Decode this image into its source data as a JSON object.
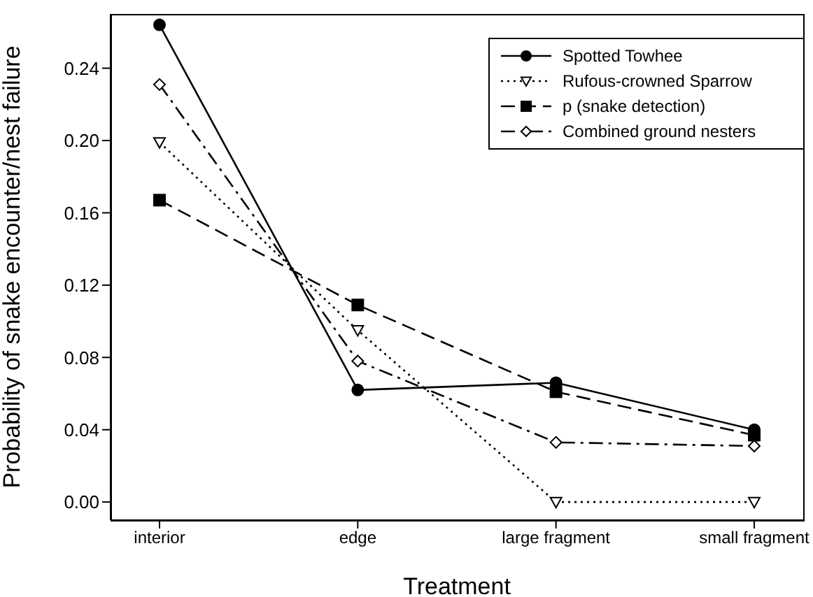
{
  "chart_data": {
    "type": "line",
    "xlabel": "Treatment",
    "ylabel": "Probability of snake encounter/nest failure",
    "categories": [
      "interior",
      "edge",
      "large fragment",
      "small fragment"
    ],
    "series": [
      {
        "name": "Spotted Towhee",
        "color": "#000000",
        "values": [
          0.264,
          0.062,
          0.066,
          0.04
        ],
        "marker": "circle",
        "line_style": "solid"
      },
      {
        "name": "Rufous-crowned Sparrow",
        "color": "#000000",
        "values": [
          0.199,
          0.095,
          0.0,
          0.0
        ],
        "marker": "triangle",
        "line_style": "dotted"
      },
      {
        "name": "p (snake detection)",
        "color": "#000000",
        "values": [
          0.167,
          0.109,
          0.061,
          0.037
        ],
        "marker": "square",
        "line_style": "dashed"
      },
      {
        "name": "Combined ground nesters",
        "color": "#000000",
        "values": [
          0.231,
          0.078,
          0.033,
          0.031
        ],
        "marker": "diamond",
        "line_style": "dashdot"
      }
    ],
    "ylim": [
      -0.01,
      0.27
    ],
    "yticks": [
      {
        "value": 0,
        "label": "0.00"
      },
      {
        "value": 0.04,
        "label": "0.04"
      },
      {
        "value": 0.08,
        "label": "0.08"
      },
      {
        "value": 0.12,
        "label": "0.12"
      },
      {
        "value": 0.16,
        "label": "0.16"
      },
      {
        "value": 0.2,
        "label": "0.20"
      },
      {
        "value": 0.24,
        "label": "0.24"
      }
    ],
    "grid": false,
    "legend": "top right"
  }
}
